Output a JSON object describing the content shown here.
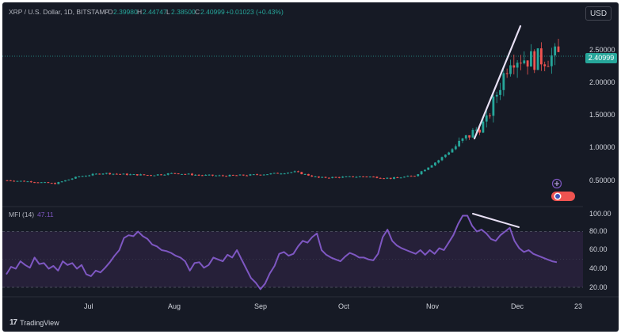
{
  "header": {
    "symbol": "XRP / U.S. Dollar, 1D, BITSTAMP",
    "open_label": "O",
    "open_value": "2.39980",
    "high_label": "H",
    "high_value": "2.44747",
    "low_label": "L",
    "low_value": "2.38500",
    "close_label": "C",
    "close_value": "2.40999",
    "change_value": "+0.01023 (+0.43%)"
  },
  "currency_button": "USD",
  "last_price_tag": "2.40999",
  "brand_text": "TradingView",
  "brand_icon": "tradingview-logo-icon",
  "price_axis": {
    "labels": [
      "2.50000",
      "2.00000",
      "1.50000",
      "1.00000",
      "0.50000"
    ],
    "values": [
      2.5,
      2.0,
      1.5,
      1.0,
      0.5
    ]
  },
  "mfi_panel": {
    "title": "MFI (14)",
    "current_value": "47.11",
    "axis_labels": [
      "100.00",
      "80.00",
      "60.00",
      "40.00",
      "20.00"
    ],
    "axis_values": [
      100,
      80,
      60,
      40,
      20
    ],
    "band_upper": 80,
    "band_mid": 50,
    "band_lower": 20
  },
  "time_axis": {
    "labels": [
      "Jul",
      "Aug",
      "Sep",
      "Oct",
      "Nov",
      "Dec",
      "23"
    ]
  },
  "colors": {
    "background": "#161a25",
    "up": "#26a69a",
    "down": "#ef5350",
    "mfi_line": "#7e57c2",
    "mfi_band": "#2a2340",
    "trendline": "#e1d5f5"
  },
  "chart_data": [
    {
      "type": "candlestick",
      "title": "XRP / U.S. Dollar, 1D, BITSTAMP",
      "ylim": [
        0.2,
        3.0
      ],
      "x_ticks": [
        "Jul",
        "Aug",
        "Sep",
        "Oct",
        "Nov",
        "Dec",
        "23"
      ],
      "approx_close_by_week": [
        {
          "x": "Jun wk4",
          "close": 0.49
        },
        {
          "x": "Jul wk1",
          "close": 0.47
        },
        {
          "x": "Jul wk2",
          "close": 0.44
        },
        {
          "x": "Jul wk3",
          "close": 0.55
        },
        {
          "x": "Jul wk4",
          "close": 0.6
        },
        {
          "x": "Aug wk1",
          "close": 0.58
        },
        {
          "x": "Aug wk2",
          "close": 0.57
        },
        {
          "x": "Aug wk3",
          "close": 0.6
        },
        {
          "x": "Aug wk4",
          "close": 0.57
        },
        {
          "x": "Sep wk1",
          "close": 0.56
        },
        {
          "x": "Sep wk2",
          "close": 0.57
        },
        {
          "x": "Sep wk3",
          "close": 0.59
        },
        {
          "x": "Sep wk4",
          "close": 0.62
        },
        {
          "x": "Oct wk1",
          "close": 0.53
        },
        {
          "x": "Oct wk2",
          "close": 0.54
        },
        {
          "x": "Oct wk3",
          "close": 0.55
        },
        {
          "x": "Oct wk4",
          "close": 0.52
        },
        {
          "x": "Nov wk1",
          "close": 0.56
        },
        {
          "x": "Nov wk2",
          "close": 0.8
        },
        {
          "x": "Nov wk3",
          "close": 1.1
        },
        {
          "x": "Nov wk4",
          "close": 1.4
        },
        {
          "x": "Dec wk1",
          "close": 2.4
        },
        {
          "x": "Dec wk2",
          "close": 2.35
        },
        {
          "x": "Dec wk3",
          "close": 2.41
        }
      ],
      "last_price": 2.40999
    },
    {
      "type": "line",
      "title": "MFI (14)",
      "ylim": [
        15,
        100
      ],
      "bands": [
        20,
        50,
        80
      ],
      "series": [
        {
          "values": [
            34,
            42,
            40,
            48,
            44,
            41,
            52,
            45,
            46,
            40,
            43,
            38,
            48,
            44,
            46,
            40,
            44,
            34,
            32,
            38,
            36,
            41,
            47,
            54,
            60,
            73,
            76,
            75,
            80,
            75,
            72,
            66,
            64,
            60,
            59,
            57,
            54,
            52,
            48,
            38,
            46,
            47,
            41,
            44,
            52,
            50,
            48,
            55,
            52,
            60,
            50,
            40,
            30,
            25,
            18,
            24,
            35,
            43,
            56,
            58,
            54,
            56,
            64,
            70,
            68,
            74,
            78,
            60,
            55,
            52,
            50,
            48,
            53,
            57,
            55,
            52,
            52,
            50,
            49,
            56,
            74,
            82,
            70,
            65,
            62,
            60,
            58,
            56,
            60,
            55,
            60,
            56,
            62,
            60,
            68,
            76,
            88,
            97,
            97,
            86,
            80,
            82,
            78,
            72,
            70,
            76,
            80,
            84,
            70,
            62,
            58,
            60,
            56,
            54,
            52,
            50,
            48,
            47
          ]
        }
      ]
    }
  ]
}
